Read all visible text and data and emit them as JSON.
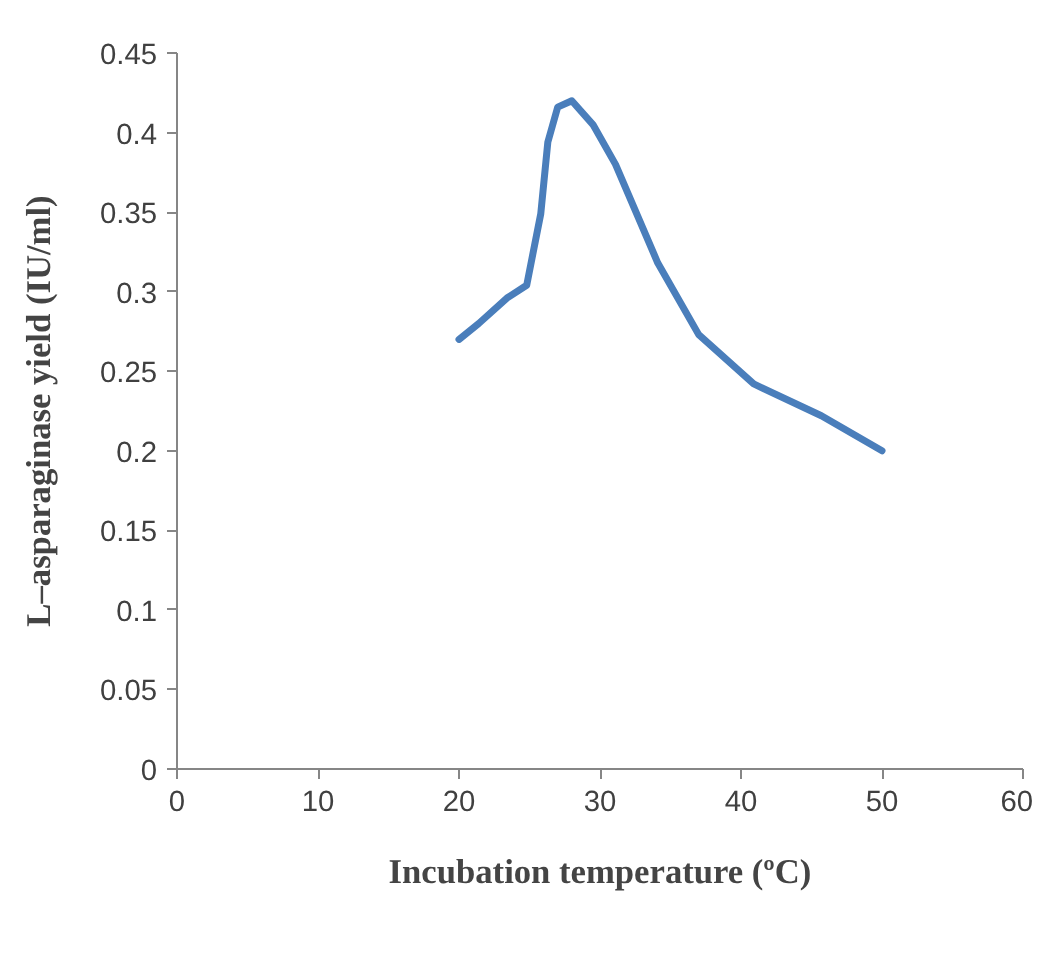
{
  "chart_data": {
    "type": "line",
    "xlabel": "Incubation temperature (ºC)",
    "ylabel": "L–asparaginase yield (IU/ml)",
    "xlim": [
      0,
      60
    ],
    "xticks": [
      0,
      10,
      20,
      30,
      40,
      50,
      60
    ],
    "ylim": [
      0,
      0.45
    ],
    "yticks": [
      0,
      0.05,
      0.1,
      0.15,
      0.2,
      0.25,
      0.3,
      0.35,
      0.4,
      0.45
    ],
    "grid": false,
    "marker": "none",
    "line_style": "solid",
    "series": [
      {
        "color": "#4a7ebb",
        "x": [
          20,
          21.4,
          23.4,
          24.8,
          25.8,
          26.3,
          27,
          28,
          29.5,
          31.1,
          34.1,
          37,
          40.9,
          45.7,
          50
        ],
        "values": [
          0.27,
          0.28,
          0.296,
          0.304,
          0.349,
          0.394,
          0.416,
          0.42,
          0.405,
          0.38,
          0.318,
          0.273,
          0.242,
          0.222,
          0.2
        ]
      }
    ]
  }
}
